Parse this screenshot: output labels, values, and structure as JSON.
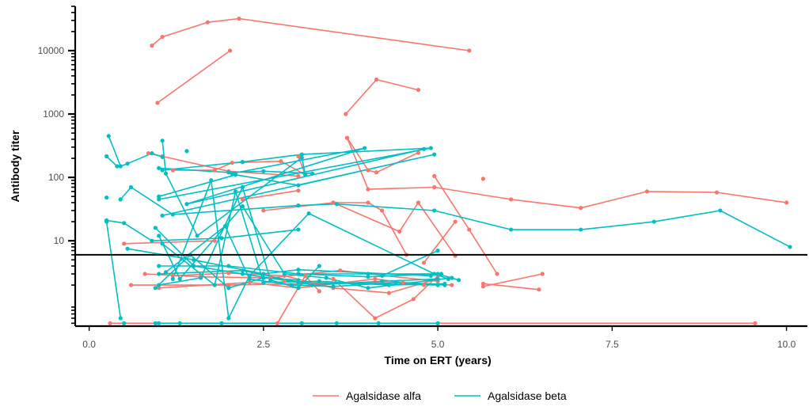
{
  "chart_data": {
    "type": "line",
    "title": "",
    "xlabel": "Time on ERT (years)",
    "ylabel": "Antibody titer",
    "xlim": [
      -0.2,
      10.3
    ],
    "ylim": [
      0.45,
      50000
    ],
    "yscale": "log",
    "x_ticks": [
      {
        "value": 0,
        "label": "0.0"
      },
      {
        "value": 2.5,
        "label": "2.5"
      },
      {
        "value": 5,
        "label": "5.0"
      },
      {
        "value": 7.5,
        "label": "7.5"
      },
      {
        "value": 10,
        "label": "10.0"
      }
    ],
    "y_ticks": [
      {
        "value": 10,
        "label": "10"
      },
      {
        "value": 100,
        "label": "100"
      },
      {
        "value": 1000,
        "label": "1000"
      },
      {
        "value": 10000,
        "label": "10000"
      }
    ],
    "reference_line": {
      "y": 6
    },
    "legend_position": "bottom",
    "colors": {
      "Agalsidase alfa": "#F8766D",
      "Agalsidase beta": "#00BFC4"
    },
    "series": [
      {
        "name": "Agalsidase alfa",
        "color": "#F8766D",
        "lines": [
          [
            [
              0.9,
              12000
            ],
            [
              1.05,
              16500
            ],
            [
              1.7,
              28000
            ],
            [
              2.15,
              32000
            ],
            [
              5.45,
              10000
            ]
          ],
          [
            [
              0.98,
              1500
            ],
            [
              2.02,
              10000
            ]
          ],
          [
            [
              3.68,
              1000
            ],
            [
              4.12,
              3500
            ],
            [
              4.72,
              2400
            ]
          ],
          [
            [
              3.7,
              420
            ],
            [
              4.0,
              130
            ],
            [
              4.12,
              120
            ],
            [
              4.72,
              245
            ]
          ],
          [
            [
              3.7,
              420
            ],
            [
              4.0,
              65
            ],
            [
              4.95,
              70
            ],
            [
              6.05,
              45
            ],
            [
              7.05,
              33
            ],
            [
              8.0,
              60
            ],
            [
              9.0,
              58
            ],
            [
              10.0,
              40
            ]
          ],
          [
            [
              3.5,
              40
            ],
            [
              4.45,
              14
            ],
            [
              4.72,
              40
            ],
            [
              5.25,
              5.8
            ]
          ],
          [
            [
              4.95,
              105
            ],
            [
              5.45,
              15
            ],
            [
              5.85,
              3
            ]
          ],
          [
            [
              3.0,
              215
            ],
            [
              3.1,
              110
            ],
            [
              2.75,
              180
            ],
            [
              2.05,
              170
            ],
            [
              1.8,
              130
            ],
            [
              1.2,
              130
            ]
          ],
          [
            [
              0.85,
              240
            ],
            [
              1.05,
              215
            ],
            [
              2.0,
              125
            ],
            [
              3.0,
              105
            ]
          ],
          [
            [
              2.2,
              45
            ],
            [
              3.0,
              62
            ]
          ],
          [
            [
              0.5,
              9
            ],
            [
              1.8,
              10
            ]
          ],
          [
            [
              2.5,
              30
            ],
            [
              3.5,
              40
            ],
            [
              4.0,
              40
            ],
            [
              4.2,
              30
            ],
            [
              4.55,
              6
            ]
          ],
          [
            [
              0.8,
              3
            ],
            [
              1.6,
              2.7
            ],
            [
              2.6,
              2.6
            ],
            [
              3.6,
              3.4
            ],
            [
              4.0,
              3
            ],
            [
              5.0,
              2.3
            ]
          ],
          [
            [
              0.6,
              2
            ],
            [
              2.0,
              2
            ],
            [
              3.2,
              2.1
            ],
            [
              4.5,
              2.2
            ],
            [
              5.2,
              2
            ]
          ],
          [
            [
              1.0,
              1.8
            ],
            [
              2.3,
              2.2
            ],
            [
              3.0,
              1.8
            ],
            [
              4.1,
              2.5
            ],
            [
              4.8,
              2
            ]
          ],
          [
            [
              1.2,
              2.8
            ],
            [
              2.0,
              3.1
            ],
            [
              2.8,
              2.8
            ],
            [
              3.5,
              1.8
            ],
            [
              4.3,
              1.5
            ],
            [
              5.0,
              2.5
            ]
          ],
          [
            [
              2.7,
              0.5
            ],
            [
              3.1,
              2.8
            ],
            [
              3.3,
              1.6
            ]
          ],
          [
            [
              3.5,
              2.5
            ],
            [
              4.1,
              0.6
            ],
            [
              4.65,
              1.2
            ],
            [
              5.0,
              2.8
            ]
          ],
          [
            [
              4.8,
              4.5
            ],
            [
              5.25,
              20
            ]
          ],
          [
            [
              5.65,
              1.9
            ],
            [
              6.5,
              3
            ]
          ],
          [
            [
              5.65,
              2.1
            ],
            [
              6.45,
              1.7
            ]
          ],
          [
            [
              0.3,
              0.5
            ],
            [
              9.55,
              0.5
            ]
          ]
        ],
        "points": [
          [
            5.65,
            95
          ],
          [
            2.8,
            2.3
          ]
        ]
      },
      {
        "name": "Agalsidase beta",
        "color": "#00BFC4",
        "lines": [
          [
            [
              0.28,
              450
            ],
            [
              0.45,
              150
            ],
            [
              0.55,
              165
            ],
            [
              0.9,
              240
            ],
            [
              1.05,
              210
            ]
          ],
          [
            [
              0.25,
              215
            ],
            [
              0.4,
              150
            ]
          ],
          [
            [
              1.05,
              380
            ],
            [
              1.1,
              115
            ],
            [
              1.55,
              12
            ],
            [
              3.05,
              205
            ],
            [
              3.1,
              110
            ]
          ],
          [
            [
              1.0,
              140
            ],
            [
              2.0,
              120
            ],
            [
              2.5,
              125
            ],
            [
              3.2,
              115
            ]
          ],
          [
            [
              1.05,
              130
            ],
            [
              2.2,
              175
            ],
            [
              3.05,
              230
            ],
            [
              4.9,
              290
            ],
            [
              1.0,
              45
            ]
          ],
          [
            [
              2.05,
              115
            ],
            [
              3.95,
              290
            ],
            [
              1.4,
              38
            ],
            [
              4.8,
              280
            ]
          ],
          [
            [
              1.0,
              50
            ],
            [
              2.1,
              110
            ],
            [
              3.0,
              75
            ],
            [
              4.95,
              230
            ],
            [
              1.05,
              25
            ]
          ],
          [
            [
              0.45,
              45
            ],
            [
              0.6,
              70
            ],
            [
              1.2,
              26
            ],
            [
              3.0,
              36
            ],
            [
              3.55,
              38
            ],
            [
              4.95,
              30
            ],
            [
              6.05,
              15
            ],
            [
              7.05,
              15
            ],
            [
              8.1,
              20
            ],
            [
              9.05,
              30
            ],
            [
              10.05,
              8
            ]
          ],
          [
            [
              0.25,
              21
            ],
            [
              0.5,
              19
            ],
            [
              0.9,
              10
            ],
            [
              1.9,
              11
            ],
            [
              3.0,
              15
            ]
          ],
          [
            [
              0.25,
              20
            ],
            [
              0.45,
              0.6
            ]
          ],
          [
            [
              0.55,
              7.5
            ],
            [
              1.5,
              5
            ],
            [
              2.5,
              3
            ],
            [
              3.0,
              3.5
            ],
            [
              4.9,
              2.8
            ]
          ],
          [
            [
              0.95,
              16
            ],
            [
              1.5,
              4
            ],
            [
              2.2,
              3
            ],
            [
              3.0,
              2.2
            ],
            [
              5.0,
              2
            ]
          ],
          [
            [
              1.0,
              12
            ],
            [
              1.3,
              2.5
            ],
            [
              2.2,
              35
            ],
            [
              2.8,
              3
            ],
            [
              3.4,
              2.6
            ],
            [
              4.0,
              1.8
            ],
            [
              5.2,
              2.6
            ]
          ],
          [
            [
              1.05,
              9
            ],
            [
              1.8,
              2
            ],
            [
              2.1,
              60
            ],
            [
              2.5,
              2.2
            ],
            [
              3.3,
              2.3
            ],
            [
              4.3,
              2
            ],
            [
              5.1,
              2.1
            ]
          ],
          [
            [
              1.0,
              4
            ],
            [
              2.0,
              4
            ],
            [
              3.0,
              3
            ],
            [
              4.0,
              2.7
            ],
            [
              5.0,
              3
            ],
            [
              5.3,
              2.4
            ]
          ],
          [
            [
              1.0,
              3
            ],
            [
              2.2,
              3.4
            ],
            [
              3.2,
              2
            ],
            [
              4.2,
              2.3
            ],
            [
              5.0,
              2.5
            ]
          ],
          [
            [
              1.1,
              3.2
            ],
            [
              1.95,
              17
            ],
            [
              2.3,
              2.5
            ],
            [
              2.9,
              2
            ],
            [
              3.5,
              1.9
            ],
            [
              4.4,
              2.2
            ],
            [
              5.1,
              2
            ]
          ],
          [
            [
              1.0,
              2
            ],
            [
              1.6,
              2.6
            ],
            [
              2.2,
              70
            ],
            [
              2.6,
              2.4
            ],
            [
              3.0,
              1.8
            ],
            [
              3.3,
              4
            ]
          ],
          [
            [
              1.2,
              2.5
            ],
            [
              1.75,
              90
            ],
            [
              2.0,
              0.6
            ],
            [
              2.3,
              2.8
            ],
            [
              3.15,
              27
            ],
            [
              4.95,
              3
            ],
            [
              5.15,
              2.5
            ]
          ],
          [
            [
              0.95,
              1.8
            ],
            [
              1.45,
              6
            ],
            [
              2.0,
              1.8
            ],
            [
              2.5,
              2.6
            ],
            [
              3.0,
              2.4
            ]
          ],
          [
            [
              1.0,
              0.5
            ],
            [
              1.3,
              0.5
            ],
            [
              1.9,
              0.5
            ],
            [
              3.05,
              0.5
            ],
            [
              3.55,
              0.5
            ],
            [
              4.15,
              0.5
            ],
            [
              5.0,
              0.5
            ]
          ],
          [
            [
              4.2,
              2.8
            ],
            [
              5.0,
              7
            ]
          ],
          [
            [
              3.0,
              3
            ],
            [
              4.0,
              3
            ],
            [
              5.05,
              3
            ]
          ]
        ],
        "points": [
          [
            0.25,
            48
          ],
          [
            1.4,
            260
          ],
          [
            0.5,
            0.5
          ],
          [
            0.95,
            0.5
          ]
        ]
      }
    ]
  }
}
